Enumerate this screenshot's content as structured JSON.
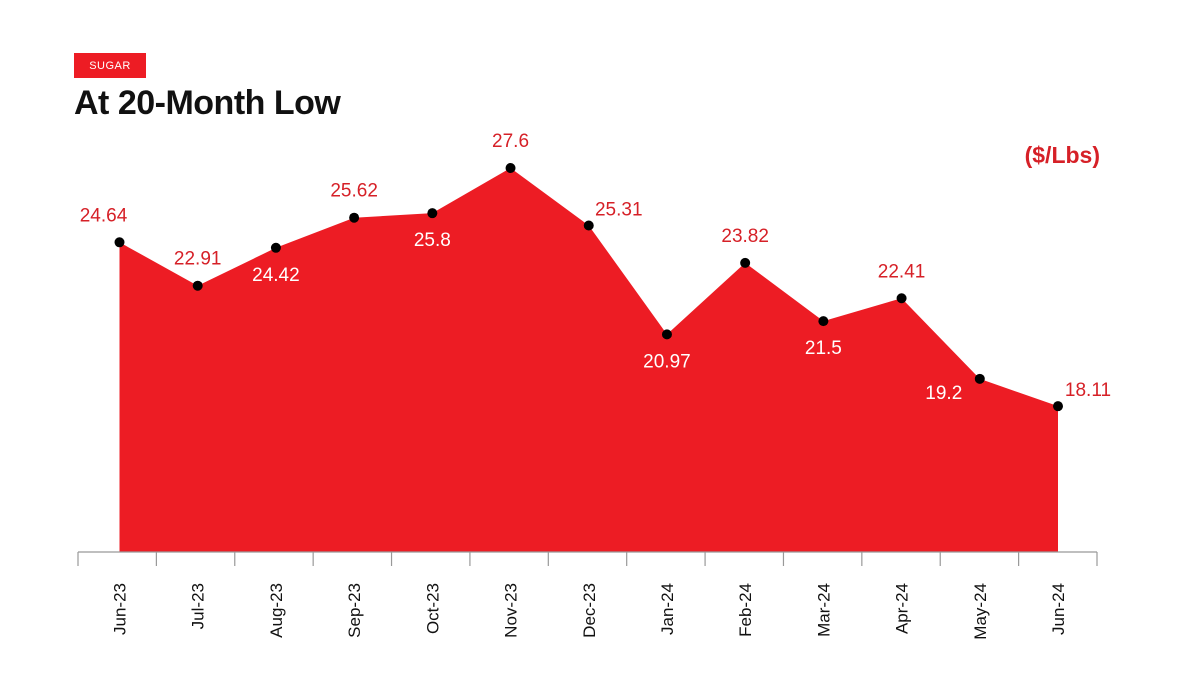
{
  "header": {
    "tag_label": "SUGAR",
    "title": "At 20-Month Low",
    "unit_label": "($/Lbs)"
  },
  "colors": {
    "accent": "#ed1c24",
    "label_dark_red": "#d62027",
    "label_white": "#ffffff",
    "marker": "#000000",
    "axis": "#999999"
  },
  "chart_data": {
    "type": "area",
    "categories": [
      "Jun-23",
      "Jul-23",
      "Aug-23",
      "Sep-23",
      "Oct-23",
      "Nov-23",
      "Dec-23",
      "Jan-24",
      "Feb-24",
      "Mar-24",
      "Apr-24",
      "May-24",
      "Jun-24"
    ],
    "values": [
      24.64,
      22.91,
      24.42,
      25.62,
      25.8,
      27.6,
      25.31,
      20.97,
      23.82,
      21.5,
      22.41,
      19.2,
      18.11
    ],
    "value_labels": [
      "24.64",
      "22.91",
      "24.42",
      "25.62",
      "25.8",
      "27.6",
      "25.31",
      "20.97",
      "23.82",
      "21.5",
      "22.41",
      "19.2",
      "18.11"
    ],
    "ylim": [
      12.3,
      27.6
    ],
    "grid": false,
    "legend": "none"
  }
}
